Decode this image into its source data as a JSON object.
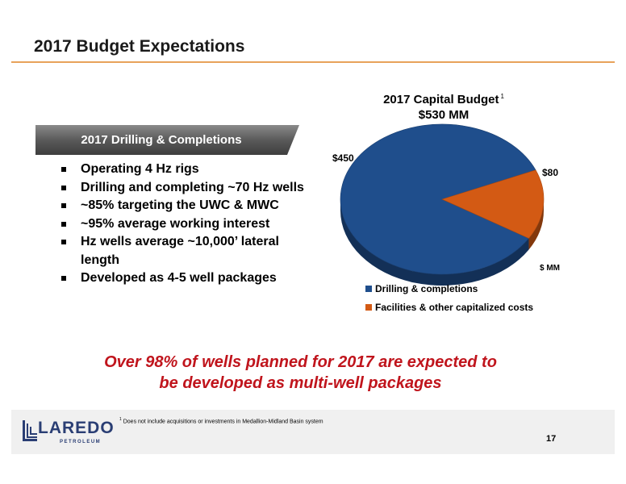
{
  "slide": {
    "title": "2017 Budget Expectations",
    "page_number": "17"
  },
  "drilling": {
    "banner": "2017 Drilling & Completions",
    "bullets": [
      "Operating 4 Hz rigs",
      "Drilling and completing ~70 Hz wells",
      "~85% targeting the UWC & MWC",
      "~95% average working interest",
      "Hz wells average ~10,000’ lateral length",
      "Developed as 4-5 well packages"
    ]
  },
  "chart_data": {
    "type": "pie",
    "title": "2017 Capital Budget",
    "title_footnote_marker": "1",
    "subtitle": "$530 MM",
    "unit": "$ MM",
    "categories": [
      "Drilling & completions",
      "Facilities & other capitalized costs"
    ],
    "values": [
      450,
      80
    ],
    "value_labels": [
      "$450",
      "$80"
    ],
    "colors": [
      "#1f4e8c",
      "#d35a14"
    ],
    "legend_position": "bottom"
  },
  "callout": {
    "line1": "Over 98% of wells planned for 2017 are expected to",
    "line2": "be developed as multi-well packages"
  },
  "footer": {
    "footnote_marker": "1",
    "footnote_text": "Does not include acquisitions or investments in Medallion-Midland Basin system",
    "logo_word": "LAREDO",
    "logo_sub": "PETROLEUM"
  },
  "colors": {
    "accent_rule": "#e8a25a",
    "callout_red": "#c0141c",
    "brand_navy": "#2a3e74"
  }
}
